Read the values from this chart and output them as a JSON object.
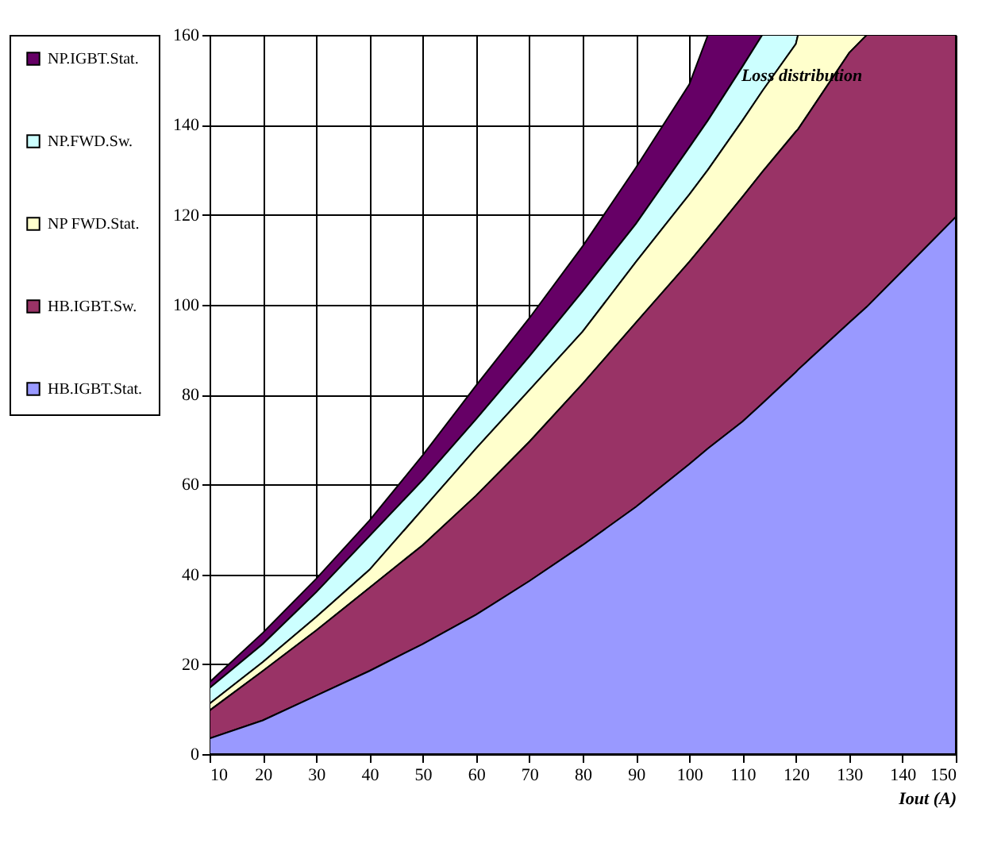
{
  "chart_data": {
    "type": "area",
    "xlabel": "Iout (A)",
    "annotations": [
      "Loss distribution"
    ],
    "xlim": [
      10,
      150
    ],
    "ylim": [
      0,
      160
    ],
    "xticks": [
      10,
      20,
      30,
      40,
      50,
      60,
      70,
      80,
      90,
      100,
      110,
      120,
      130,
      140,
      150
    ],
    "yticks": [
      0,
      20,
      40,
      60,
      80,
      100,
      120,
      140,
      160
    ],
    "grid": true,
    "legend": "left",
    "x": [
      10,
      20,
      30,
      40,
      50,
      60,
      70,
      80,
      90,
      100,
      103.5,
      110,
      113.7,
      120,
      120.4,
      130,
      133.3,
      140,
      150
    ],
    "series": [
      {
        "name": "NP.IGBT.Stat.",
        "color": "#660066",
        "values": [
          16,
          27,
          39,
          52,
          66.5,
          82,
          97,
          113,
          130.5,
          149,
          160,
          160,
          160,
          160,
          160,
          160,
          160,
          160,
          160
        ]
      },
      {
        "name": "NP.FWD.Sw.",
        "color": "#ccffff",
        "values": [
          14.7,
          24.5,
          36,
          48.5,
          61,
          74.5,
          88.5,
          103,
          118,
          135,
          141,
          153,
          160,
          160,
          160,
          160,
          160,
          160,
          160
        ]
      },
      {
        "name": "NP FWD.Stat.",
        "color": "#ffffcc",
        "values": [
          11.2,
          20.5,
          30.5,
          41,
          54.5,
          68,
          81,
          94,
          109.5,
          124.5,
          130,
          141,
          147.5,
          158,
          160,
          160,
          160,
          160,
          160
        ]
      },
      {
        "name": "HB.IGBT.Sw.",
        "color": "#993366",
        "values": [
          9.7,
          18.5,
          27.5,
          37,
          46.5,
          57.5,
          69.5,
          82.4,
          96,
          109.5,
          114.5,
          124,
          129.5,
          138.5,
          139,
          156,
          160,
          160,
          160
        ]
      },
      {
        "name": "HB.IGBT.Stat.",
        "color": "#9999ff",
        "values": [
          3.5,
          7.5,
          13,
          18.5,
          24.5,
          31,
          38.5,
          46.5,
          55,
          64.5,
          68,
          74,
          78,
          85,
          85.5,
          96,
          99.5,
          107.5,
          119.5
        ]
      }
    ]
  }
}
